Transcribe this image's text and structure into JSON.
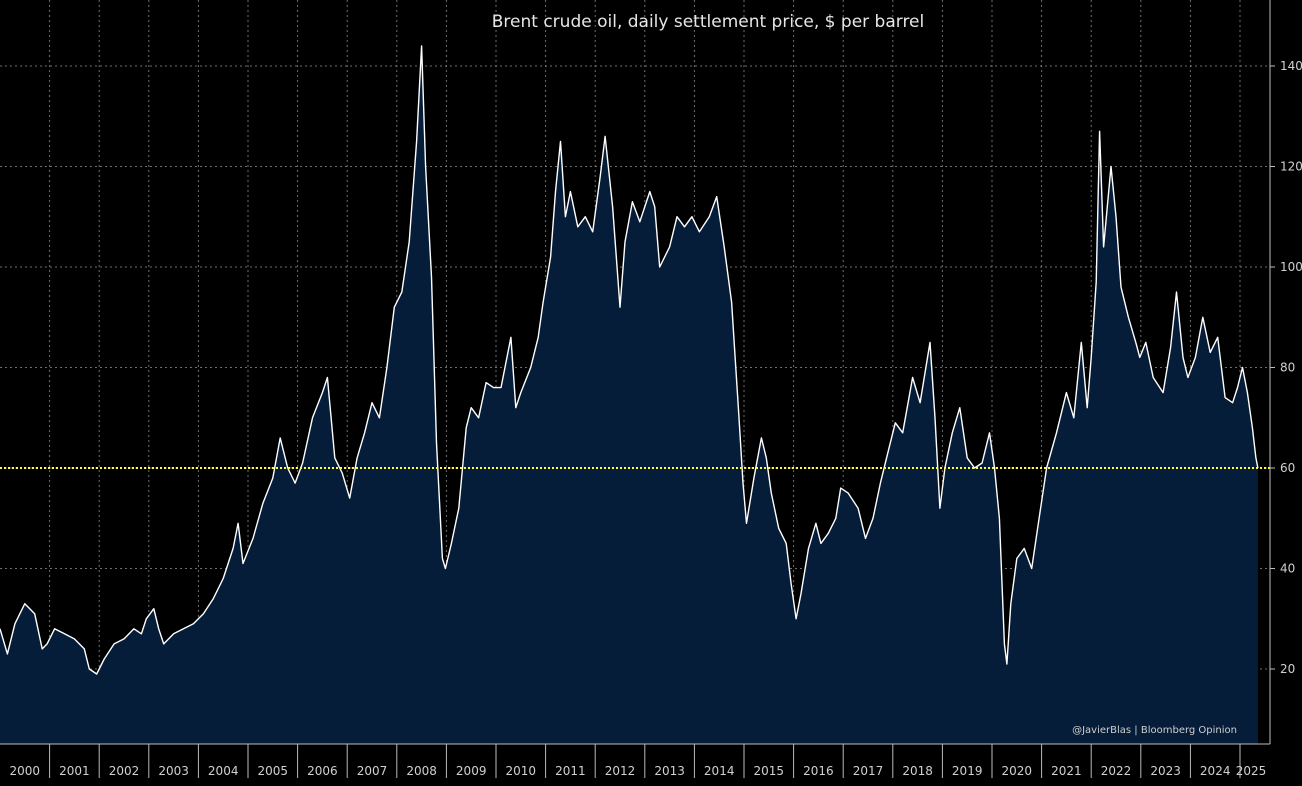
{
  "chart_data": {
    "type": "area",
    "title": "Brent crude oil, daily settlement price, $ per barrel",
    "credit": "@JavierBlas | Bloomberg Opinion",
    "xlabel": "",
    "ylabel": "",
    "x_range": [
      2000.0,
      2025.42
    ],
    "ylim": [
      5,
      150
    ],
    "yticks": [
      20,
      40,
      60,
      80,
      100,
      120,
      140
    ],
    "xtick_labels": [
      "2000",
      "2001",
      "2002",
      "2003",
      "2004",
      "2005",
      "2006",
      "2007",
      "2008",
      "2009",
      "2010",
      "2011",
      "2012",
      "2013",
      "2014",
      "2015",
      "2016",
      "2017",
      "2018",
      "2019",
      "2020",
      "2021",
      "2022",
      "2023",
      "2024",
      "2025"
    ],
    "grid": true,
    "reference_line": {
      "value": 60,
      "color": "#ffff33"
    },
    "colors": {
      "background": "#000000",
      "fill": "#061d3a",
      "line": "#ffffff",
      "grid": "#8a8a8a",
      "axis": "#bbbbbb"
    },
    "series": [
      {
        "name": "Brent crude oil",
        "points": [
          [
            2000.0,
            28
          ],
          [
            2000.15,
            23
          ],
          [
            2000.3,
            29
          ],
          [
            2000.5,
            33
          ],
          [
            2000.7,
            31
          ],
          [
            2000.85,
            24
          ],
          [
            2000.95,
            25
          ],
          [
            2001.1,
            28
          ],
          [
            2001.3,
            27
          ],
          [
            2001.5,
            26
          ],
          [
            2001.7,
            24
          ],
          [
            2001.8,
            20
          ],
          [
            2001.95,
            19
          ],
          [
            2002.1,
            22
          ],
          [
            2002.3,
            25
          ],
          [
            2002.5,
            26
          ],
          [
            2002.7,
            28
          ],
          [
            2002.85,
            27
          ],
          [
            2002.95,
            30
          ],
          [
            2003.1,
            32
          ],
          [
            2003.2,
            28
          ],
          [
            2003.3,
            25
          ],
          [
            2003.5,
            27
          ],
          [
            2003.7,
            28
          ],
          [
            2003.9,
            29
          ],
          [
            2004.1,
            31
          ],
          [
            2004.3,
            34
          ],
          [
            2004.5,
            38
          ],
          [
            2004.7,
            44
          ],
          [
            2004.8,
            49
          ],
          [
            2004.9,
            41
          ],
          [
            2005.1,
            46
          ],
          [
            2005.3,
            53
          ],
          [
            2005.5,
            58
          ],
          [
            2005.65,
            66
          ],
          [
            2005.8,
            60
          ],
          [
            2005.95,
            57
          ],
          [
            2006.1,
            61
          ],
          [
            2006.3,
            70
          ],
          [
            2006.5,
            75
          ],
          [
            2006.6,
            78
          ],
          [
            2006.75,
            62
          ],
          [
            2006.9,
            59
          ],
          [
            2007.05,
            54
          ],
          [
            2007.2,
            62
          ],
          [
            2007.35,
            67
          ],
          [
            2007.5,
            73
          ],
          [
            2007.65,
            70
          ],
          [
            2007.8,
            80
          ],
          [
            2007.95,
            92
          ],
          [
            2008.1,
            95
          ],
          [
            2008.25,
            105
          ],
          [
            2008.4,
            125
          ],
          [
            2008.5,
            144
          ],
          [
            2008.58,
            120
          ],
          [
            2008.7,
            98
          ],
          [
            2008.8,
            65
          ],
          [
            2008.92,
            42
          ],
          [
            2008.98,
            40
          ],
          [
            2009.1,
            45
          ],
          [
            2009.25,
            52
          ],
          [
            2009.4,
            68
          ],
          [
            2009.5,
            72
          ],
          [
            2009.65,
            70
          ],
          [
            2009.8,
            77
          ],
          [
            2009.95,
            76
          ],
          [
            2010.1,
            76
          ],
          [
            2010.3,
            86
          ],
          [
            2010.4,
            72
          ],
          [
            2010.5,
            75
          ],
          [
            2010.7,
            80
          ],
          [
            2010.85,
            86
          ],
          [
            2010.95,
            93
          ],
          [
            2011.1,
            102
          ],
          [
            2011.2,
            115
          ],
          [
            2011.3,
            125
          ],
          [
            2011.4,
            110
          ],
          [
            2011.5,
            115
          ],
          [
            2011.65,
            108
          ],
          [
            2011.8,
            110
          ],
          [
            2011.95,
            107
          ],
          [
            2012.1,
            118
          ],
          [
            2012.2,
            126
          ],
          [
            2012.35,
            112
          ],
          [
            2012.5,
            92
          ],
          [
            2012.6,
            105
          ],
          [
            2012.75,
            113
          ],
          [
            2012.9,
            109
          ],
          [
            2013.1,
            115
          ],
          [
            2013.2,
            112
          ],
          [
            2013.3,
            100
          ],
          [
            2013.5,
            104
          ],
          [
            2013.65,
            110
          ],
          [
            2013.8,
            108
          ],
          [
            2013.95,
            110
          ],
          [
            2014.1,
            107
          ],
          [
            2014.3,
            110
          ],
          [
            2014.45,
            114
          ],
          [
            2014.6,
            104
          ],
          [
            2014.75,
            93
          ],
          [
            2014.9,
            70
          ],
          [
            2014.98,
            57
          ],
          [
            2015.05,
            49
          ],
          [
            2015.2,
            58
          ],
          [
            2015.35,
            66
          ],
          [
            2015.45,
            62
          ],
          [
            2015.55,
            55
          ],
          [
            2015.7,
            48
          ],
          [
            2015.85,
            45
          ],
          [
            2015.95,
            37
          ],
          [
            2016.05,
            30
          ],
          [
            2016.15,
            35
          ],
          [
            2016.3,
            44
          ],
          [
            2016.45,
            49
          ],
          [
            2016.55,
            45
          ],
          [
            2016.7,
            47
          ],
          [
            2016.85,
            50
          ],
          [
            2016.95,
            56
          ],
          [
            2017.1,
            55
          ],
          [
            2017.3,
            52
          ],
          [
            2017.45,
            46
          ],
          [
            2017.6,
            50
          ],
          [
            2017.75,
            57
          ],
          [
            2017.9,
            63
          ],
          [
            2018.05,
            69
          ],
          [
            2018.2,
            67
          ],
          [
            2018.4,
            78
          ],
          [
            2018.55,
            73
          ],
          [
            2018.75,
            85
          ],
          [
            2018.85,
            70
          ],
          [
            2018.95,
            52
          ],
          [
            2019.05,
            60
          ],
          [
            2019.2,
            67
          ],
          [
            2019.35,
            72
          ],
          [
            2019.5,
            62
          ],
          [
            2019.65,
            60
          ],
          [
            2019.8,
            61
          ],
          [
            2019.95,
            67
          ],
          [
            2020.05,
            60
          ],
          [
            2020.15,
            50
          ],
          [
            2020.25,
            25
          ],
          [
            2020.3,
            21
          ],
          [
            2020.38,
            33
          ],
          [
            2020.5,
            42
          ],
          [
            2020.65,
            44
          ],
          [
            2020.8,
            40
          ],
          [
            2020.95,
            50
          ],
          [
            2021.1,
            60
          ],
          [
            2021.3,
            67
          ],
          [
            2021.5,
            75
          ],
          [
            2021.65,
            70
          ],
          [
            2021.8,
            85
          ],
          [
            2021.92,
            72
          ],
          [
            2022.0,
            82
          ],
          [
            2022.1,
            97
          ],
          [
            2022.17,
            127
          ],
          [
            2022.25,
            104
          ],
          [
            2022.4,
            120
          ],
          [
            2022.5,
            110
          ],
          [
            2022.6,
            96
          ],
          [
            2022.75,
            90
          ],
          [
            2022.9,
            85
          ],
          [
            2022.98,
            82
          ],
          [
            2023.1,
            85
          ],
          [
            2023.25,
            78
          ],
          [
            2023.45,
            75
          ],
          [
            2023.6,
            84
          ],
          [
            2023.72,
            95
          ],
          [
            2023.85,
            82
          ],
          [
            2023.95,
            78
          ],
          [
            2024.1,
            82
          ],
          [
            2024.25,
            90
          ],
          [
            2024.4,
            83
          ],
          [
            2024.55,
            86
          ],
          [
            2024.7,
            74
          ],
          [
            2024.85,
            73
          ],
          [
            2024.95,
            76
          ],
          [
            2025.05,
            80
          ],
          [
            2025.15,
            75
          ],
          [
            2025.25,
            68
          ],
          [
            2025.32,
            62
          ],
          [
            2025.36,
            60
          ]
        ]
      }
    ]
  }
}
